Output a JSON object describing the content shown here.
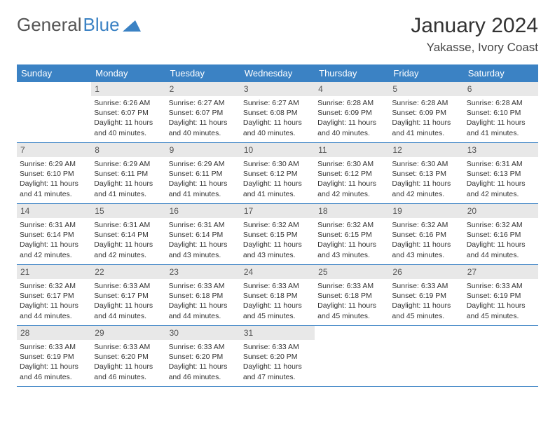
{
  "logo": {
    "text1": "General",
    "text2": "Blue"
  },
  "title": "January 2024",
  "location": "Yakasse, Ivory Coast",
  "colors": {
    "header_bg": "#3b82c4",
    "header_text": "#ffffff",
    "daynum_bg": "#e8e8e8",
    "daynum_text": "#555555",
    "border": "#3b82c4",
    "logo_gray": "#555555",
    "logo_blue": "#3b82c4"
  },
  "day_names": [
    "Sunday",
    "Monday",
    "Tuesday",
    "Wednesday",
    "Thursday",
    "Friday",
    "Saturday"
  ],
  "weeks": [
    [
      null,
      {
        "n": "1",
        "sr": "Sunrise: 6:26 AM",
        "ss": "Sunset: 6:07 PM",
        "dl": "Daylight: 11 hours and 40 minutes."
      },
      {
        "n": "2",
        "sr": "Sunrise: 6:27 AM",
        "ss": "Sunset: 6:07 PM",
        "dl": "Daylight: 11 hours and 40 minutes."
      },
      {
        "n": "3",
        "sr": "Sunrise: 6:27 AM",
        "ss": "Sunset: 6:08 PM",
        "dl": "Daylight: 11 hours and 40 minutes."
      },
      {
        "n": "4",
        "sr": "Sunrise: 6:28 AM",
        "ss": "Sunset: 6:09 PM",
        "dl": "Daylight: 11 hours and 40 minutes."
      },
      {
        "n": "5",
        "sr": "Sunrise: 6:28 AM",
        "ss": "Sunset: 6:09 PM",
        "dl": "Daylight: 11 hours and 41 minutes."
      },
      {
        "n": "6",
        "sr": "Sunrise: 6:28 AM",
        "ss": "Sunset: 6:10 PM",
        "dl": "Daylight: 11 hours and 41 minutes."
      }
    ],
    [
      {
        "n": "7",
        "sr": "Sunrise: 6:29 AM",
        "ss": "Sunset: 6:10 PM",
        "dl": "Daylight: 11 hours and 41 minutes."
      },
      {
        "n": "8",
        "sr": "Sunrise: 6:29 AM",
        "ss": "Sunset: 6:11 PM",
        "dl": "Daylight: 11 hours and 41 minutes."
      },
      {
        "n": "9",
        "sr": "Sunrise: 6:29 AM",
        "ss": "Sunset: 6:11 PM",
        "dl": "Daylight: 11 hours and 41 minutes."
      },
      {
        "n": "10",
        "sr": "Sunrise: 6:30 AM",
        "ss": "Sunset: 6:12 PM",
        "dl": "Daylight: 11 hours and 41 minutes."
      },
      {
        "n": "11",
        "sr": "Sunrise: 6:30 AM",
        "ss": "Sunset: 6:12 PM",
        "dl": "Daylight: 11 hours and 42 minutes."
      },
      {
        "n": "12",
        "sr": "Sunrise: 6:30 AM",
        "ss": "Sunset: 6:13 PM",
        "dl": "Daylight: 11 hours and 42 minutes."
      },
      {
        "n": "13",
        "sr": "Sunrise: 6:31 AM",
        "ss": "Sunset: 6:13 PM",
        "dl": "Daylight: 11 hours and 42 minutes."
      }
    ],
    [
      {
        "n": "14",
        "sr": "Sunrise: 6:31 AM",
        "ss": "Sunset: 6:14 PM",
        "dl": "Daylight: 11 hours and 42 minutes."
      },
      {
        "n": "15",
        "sr": "Sunrise: 6:31 AM",
        "ss": "Sunset: 6:14 PM",
        "dl": "Daylight: 11 hours and 42 minutes."
      },
      {
        "n": "16",
        "sr": "Sunrise: 6:31 AM",
        "ss": "Sunset: 6:14 PM",
        "dl": "Daylight: 11 hours and 43 minutes."
      },
      {
        "n": "17",
        "sr": "Sunrise: 6:32 AM",
        "ss": "Sunset: 6:15 PM",
        "dl": "Daylight: 11 hours and 43 minutes."
      },
      {
        "n": "18",
        "sr": "Sunrise: 6:32 AM",
        "ss": "Sunset: 6:15 PM",
        "dl": "Daylight: 11 hours and 43 minutes."
      },
      {
        "n": "19",
        "sr": "Sunrise: 6:32 AM",
        "ss": "Sunset: 6:16 PM",
        "dl": "Daylight: 11 hours and 43 minutes."
      },
      {
        "n": "20",
        "sr": "Sunrise: 6:32 AM",
        "ss": "Sunset: 6:16 PM",
        "dl": "Daylight: 11 hours and 44 minutes."
      }
    ],
    [
      {
        "n": "21",
        "sr": "Sunrise: 6:32 AM",
        "ss": "Sunset: 6:17 PM",
        "dl": "Daylight: 11 hours and 44 minutes."
      },
      {
        "n": "22",
        "sr": "Sunrise: 6:33 AM",
        "ss": "Sunset: 6:17 PM",
        "dl": "Daylight: 11 hours and 44 minutes."
      },
      {
        "n": "23",
        "sr": "Sunrise: 6:33 AM",
        "ss": "Sunset: 6:18 PM",
        "dl": "Daylight: 11 hours and 44 minutes."
      },
      {
        "n": "24",
        "sr": "Sunrise: 6:33 AM",
        "ss": "Sunset: 6:18 PM",
        "dl": "Daylight: 11 hours and 45 minutes."
      },
      {
        "n": "25",
        "sr": "Sunrise: 6:33 AM",
        "ss": "Sunset: 6:18 PM",
        "dl": "Daylight: 11 hours and 45 minutes."
      },
      {
        "n": "26",
        "sr": "Sunrise: 6:33 AM",
        "ss": "Sunset: 6:19 PM",
        "dl": "Daylight: 11 hours and 45 minutes."
      },
      {
        "n": "27",
        "sr": "Sunrise: 6:33 AM",
        "ss": "Sunset: 6:19 PM",
        "dl": "Daylight: 11 hours and 45 minutes."
      }
    ],
    [
      {
        "n": "28",
        "sr": "Sunrise: 6:33 AM",
        "ss": "Sunset: 6:19 PM",
        "dl": "Daylight: 11 hours and 46 minutes."
      },
      {
        "n": "29",
        "sr": "Sunrise: 6:33 AM",
        "ss": "Sunset: 6:20 PM",
        "dl": "Daylight: 11 hours and 46 minutes."
      },
      {
        "n": "30",
        "sr": "Sunrise: 6:33 AM",
        "ss": "Sunset: 6:20 PM",
        "dl": "Daylight: 11 hours and 46 minutes."
      },
      {
        "n": "31",
        "sr": "Sunrise: 6:33 AM",
        "ss": "Sunset: 6:20 PM",
        "dl": "Daylight: 11 hours and 47 minutes."
      },
      null,
      null,
      null
    ]
  ]
}
